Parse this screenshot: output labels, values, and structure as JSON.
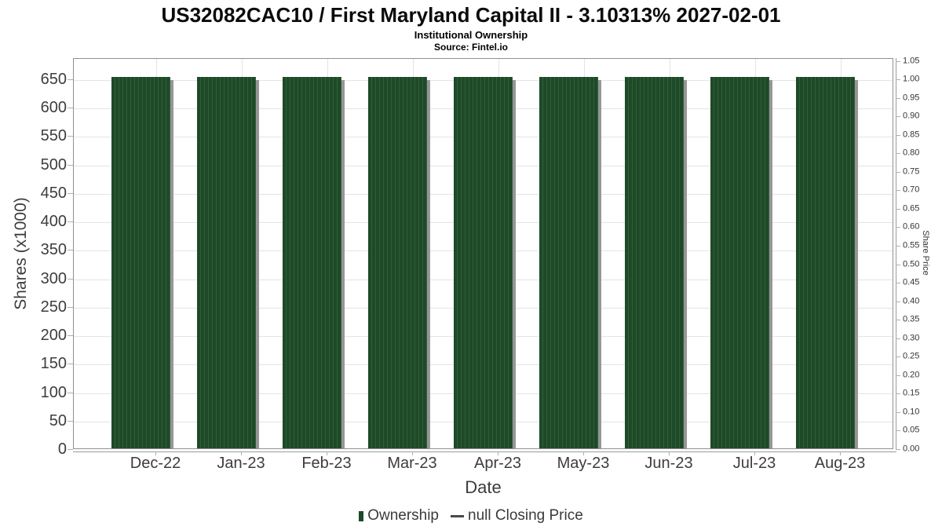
{
  "header": {
    "title": "US32082CAC10 / First Maryland Capital II - 3.10313% 2027-02-01",
    "subtitle": "Institutional Ownership",
    "source": "Source: Fintel.io"
  },
  "colors": {
    "bar": "#1d4a27",
    "bar_shadow": "#969696",
    "grid": "#e4e4e4",
    "axis_border": "#909090",
    "axis_text": "#3d3d3d",
    "legend_line": "#4a4a4a"
  },
  "legend": {
    "items": [
      {
        "label": "Ownership",
        "marker": "bar"
      },
      {
        "label": "null Closing Price",
        "marker": "line"
      }
    ]
  },
  "chart_data": {
    "type": "bar",
    "title": "US32082CAC10 / First Maryland Capital II - 3.10313% 2027-02-01",
    "subtitle": "Institutional Ownership",
    "source": "Source: Fintel.io",
    "categories": [
      "Dec-22",
      "Jan-23",
      "Feb-23",
      "Mar-23",
      "Apr-23",
      "May-23",
      "Jun-23",
      "Jul-23",
      "Aug-23"
    ],
    "series": [
      {
        "name": "Ownership",
        "type": "bar",
        "axis": "left",
        "color": "#1d4a27",
        "values": [
          652,
          652,
          652,
          652,
          652,
          652,
          652,
          652,
          652
        ]
      },
      {
        "name": "null Closing Price",
        "type": "line",
        "axis": "right",
        "color": "#4a4a4a",
        "values": [
          null,
          null,
          null,
          null,
          null,
          null,
          null,
          null,
          null
        ]
      }
    ],
    "xlabel": "Date",
    "ylabel_left": "Shares (x1000)",
    "ylabel_right": "Share Price",
    "yticks_left": [
      0,
      50,
      100,
      150,
      200,
      250,
      300,
      350,
      400,
      450,
      500,
      550,
      600,
      650
    ],
    "yticks_right": [
      0.0,
      0.05,
      0.1,
      0.15,
      0.2,
      0.25,
      0.3,
      0.35,
      0.4,
      0.45,
      0.5,
      0.55,
      0.6,
      0.65,
      0.7,
      0.75,
      0.8,
      0.85,
      0.9,
      0.95,
      1.0,
      1.05
    ],
    "ylim_left": [
      0,
      687
    ],
    "ylim_right": [
      0,
      1.0575
    ],
    "grid": true,
    "legend_position": "bottom"
  }
}
